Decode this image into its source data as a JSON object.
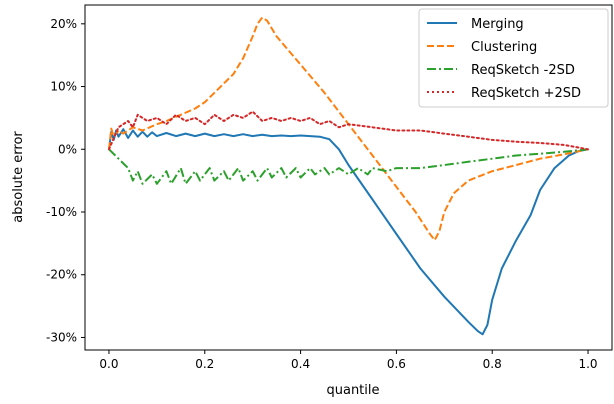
{
  "chart_data": {
    "type": "line",
    "xlabel": "quantile",
    "ylabel": "absolute error",
    "xlim": [
      -0.05,
      1.05
    ],
    "ylim": [
      -32,
      23
    ],
    "x_ticks": [
      0.0,
      0.2,
      0.4,
      0.6,
      0.8,
      1.0
    ],
    "x_tick_labels": [
      "0.0",
      "0.2",
      "0.4",
      "0.6",
      "0.8",
      "1.0"
    ],
    "y_ticks": [
      20,
      10,
      0,
      -10,
      -20,
      -30
    ],
    "y_tick_labels": [
      "20%",
      "10%",
      "0%",
      "-10%",
      "-20%",
      "-30%"
    ],
    "grid": false,
    "legend_position": "top-right",
    "series": [
      {
        "name": "Merging",
        "color": "#1f77b4",
        "style": "solid",
        "points": [
          [
            0.0,
            0.0
          ],
          [
            0.005,
            2.8
          ],
          [
            0.01,
            1.5
          ],
          [
            0.015,
            3.0
          ],
          [
            0.02,
            2.0
          ],
          [
            0.03,
            3.2
          ],
          [
            0.04,
            1.8
          ],
          [
            0.05,
            3.0
          ],
          [
            0.06,
            2.0
          ],
          [
            0.07,
            2.8
          ],
          [
            0.08,
            2.0
          ],
          [
            0.09,
            2.7
          ],
          [
            0.1,
            2.1
          ],
          [
            0.12,
            2.6
          ],
          [
            0.14,
            2.1
          ],
          [
            0.16,
            2.5
          ],
          [
            0.18,
            2.1
          ],
          [
            0.2,
            2.5
          ],
          [
            0.22,
            2.1
          ],
          [
            0.24,
            2.4
          ],
          [
            0.26,
            2.1
          ],
          [
            0.28,
            2.4
          ],
          [
            0.3,
            2.1
          ],
          [
            0.32,
            2.3
          ],
          [
            0.34,
            2.1
          ],
          [
            0.36,
            2.2
          ],
          [
            0.38,
            2.1
          ],
          [
            0.4,
            2.2
          ],
          [
            0.42,
            2.1
          ],
          [
            0.44,
            2.0
          ],
          [
            0.46,
            1.6
          ],
          [
            0.48,
            0.0
          ],
          [
            0.5,
            -2.5
          ],
          [
            0.55,
            -8.0
          ],
          [
            0.6,
            -13.5
          ],
          [
            0.65,
            -19.0
          ],
          [
            0.7,
            -23.5
          ],
          [
            0.75,
            -27.5
          ],
          [
            0.77,
            -29.0
          ],
          [
            0.78,
            -29.5
          ],
          [
            0.79,
            -28.0
          ],
          [
            0.8,
            -24.0
          ],
          [
            0.82,
            -19.0
          ],
          [
            0.85,
            -14.5
          ],
          [
            0.88,
            -10.5
          ],
          [
            0.9,
            -6.5
          ],
          [
            0.93,
            -3.0
          ],
          [
            0.96,
            -1.0
          ],
          [
            0.98,
            -0.3
          ],
          [
            1.0,
            0.0
          ]
        ]
      },
      {
        "name": "Clustering",
        "color": "#ff7f0e",
        "style": "dashed",
        "points": [
          [
            0.0,
            0.0
          ],
          [
            0.005,
            3.3
          ],
          [
            0.01,
            2.0
          ],
          [
            0.02,
            3.0
          ],
          [
            0.03,
            2.5
          ],
          [
            0.05,
            3.5
          ],
          [
            0.07,
            3.0
          ],
          [
            0.1,
            4.0
          ],
          [
            0.12,
            4.5
          ],
          [
            0.15,
            5.5
          ],
          [
            0.18,
            6.5
          ],
          [
            0.2,
            7.5
          ],
          [
            0.22,
            9.0
          ],
          [
            0.24,
            10.5
          ],
          [
            0.26,
            12.0
          ],
          [
            0.28,
            14.5
          ],
          [
            0.3,
            18.0
          ],
          [
            0.31,
            20.0
          ],
          [
            0.32,
            21.0
          ],
          [
            0.33,
            20.5
          ],
          [
            0.35,
            18.0
          ],
          [
            0.4,
            13.5
          ],
          [
            0.45,
            9.0
          ],
          [
            0.5,
            4.0
          ],
          [
            0.55,
            -1.0
          ],
          [
            0.6,
            -6.0
          ],
          [
            0.64,
            -10.0
          ],
          [
            0.67,
            -13.5
          ],
          [
            0.68,
            -14.5
          ],
          [
            0.69,
            -13.0
          ],
          [
            0.7,
            -10.0
          ],
          [
            0.72,
            -7.0
          ],
          [
            0.75,
            -5.0
          ],
          [
            0.8,
            -3.5
          ],
          [
            0.85,
            -2.5
          ],
          [
            0.9,
            -1.5
          ],
          [
            0.95,
            -0.8
          ],
          [
            1.0,
            0.0
          ]
        ]
      },
      {
        "name": "ReqSketch -2SD",
        "color": "#2ca02c",
        "style": "dashdot",
        "points": [
          [
            0.0,
            0.0
          ],
          [
            0.02,
            -1.5
          ],
          [
            0.04,
            -3.0
          ],
          [
            0.05,
            -5.0
          ],
          [
            0.06,
            -3.5
          ],
          [
            0.07,
            -5.5
          ],
          [
            0.09,
            -4.0
          ],
          [
            0.1,
            -5.5
          ],
          [
            0.12,
            -3.5
          ],
          [
            0.13,
            -5.5
          ],
          [
            0.15,
            -3.0
          ],
          [
            0.16,
            -5.5
          ],
          [
            0.18,
            -3.5
          ],
          [
            0.19,
            -5.0
          ],
          [
            0.21,
            -3.0
          ],
          [
            0.22,
            -5.0
          ],
          [
            0.24,
            -3.5
          ],
          [
            0.25,
            -5.0
          ],
          [
            0.27,
            -3.0
          ],
          [
            0.28,
            -5.0
          ],
          [
            0.3,
            -3.5
          ],
          [
            0.31,
            -5.0
          ],
          [
            0.33,
            -3.0
          ],
          [
            0.34,
            -4.5
          ],
          [
            0.36,
            -3.0
          ],
          [
            0.37,
            -4.5
          ],
          [
            0.39,
            -3.0
          ],
          [
            0.4,
            -4.5
          ],
          [
            0.42,
            -3.0
          ],
          [
            0.43,
            -4.0
          ],
          [
            0.45,
            -3.0
          ],
          [
            0.46,
            -4.0
          ],
          [
            0.48,
            -3.0
          ],
          [
            0.5,
            -4.0
          ],
          [
            0.52,
            -3.0
          ],
          [
            0.54,
            -4.0
          ],
          [
            0.55,
            -3.0
          ],
          [
            0.58,
            -3.5
          ],
          [
            0.6,
            -3.0
          ],
          [
            0.65,
            -3.0
          ],
          [
            0.7,
            -2.5
          ],
          [
            0.75,
            -2.0
          ],
          [
            0.8,
            -1.5
          ],
          [
            0.85,
            -1.0
          ],
          [
            0.9,
            -0.7
          ],
          [
            0.95,
            -0.4
          ],
          [
            1.0,
            0.0
          ]
        ]
      },
      {
        "name": "ReqSketch +2SD",
        "color": "#d62728",
        "style": "dotted",
        "points": [
          [
            0.0,
            0.0
          ],
          [
            0.02,
            3.5
          ],
          [
            0.04,
            4.5
          ],
          [
            0.05,
            3.5
          ],
          [
            0.06,
            5.5
          ],
          [
            0.08,
            4.5
          ],
          [
            0.1,
            5.0
          ],
          [
            0.12,
            4.0
          ],
          [
            0.14,
            5.5
          ],
          [
            0.16,
            4.5
          ],
          [
            0.18,
            5.0
          ],
          [
            0.2,
            4.0
          ],
          [
            0.22,
            5.5
          ],
          [
            0.24,
            4.5
          ],
          [
            0.26,
            5.5
          ],
          [
            0.28,
            5.0
          ],
          [
            0.3,
            6.0
          ],
          [
            0.32,
            4.5
          ],
          [
            0.34,
            5.0
          ],
          [
            0.36,
            4.5
          ],
          [
            0.38,
            5.0
          ],
          [
            0.4,
            4.5
          ],
          [
            0.42,
            5.0
          ],
          [
            0.44,
            4.0
          ],
          [
            0.46,
            4.5
          ],
          [
            0.48,
            3.5
          ],
          [
            0.5,
            4.0
          ],
          [
            0.55,
            3.5
          ],
          [
            0.6,
            3.0
          ],
          [
            0.65,
            3.0
          ],
          [
            0.7,
            2.5
          ],
          [
            0.75,
            2.0
          ],
          [
            0.8,
            1.5
          ],
          [
            0.85,
            1.2
          ],
          [
            0.9,
            1.0
          ],
          [
            0.95,
            0.7
          ],
          [
            1.0,
            0.0
          ]
        ]
      }
    ]
  }
}
